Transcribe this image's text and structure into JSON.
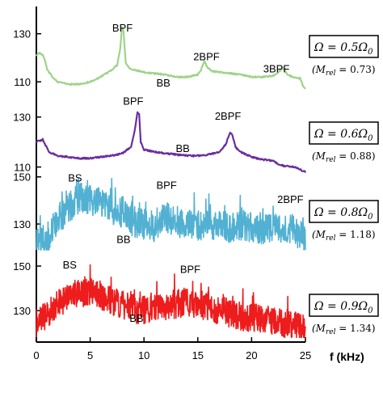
{
  "chart_data": {
    "type": "line",
    "xlabel": "f (kHz)",
    "xlim": [
      0,
      25
    ],
    "x_ticks": [
      "0",
      "5",
      "10",
      "15",
      "20",
      "25"
    ],
    "panels": [
      {
        "color": "#9fd38a",
        "y_ticks": [
          "130",
          "110"
        ],
        "ylim": [
          103,
          140
        ],
        "box_label": "Ω = 0.5Ω0",
        "box_main": "Ω = 0.5Ω",
        "box_sub": "0",
        "mrel_label": "(M",
        "mrel_sub": "rel",
        "mrel_value": " = 0.73)",
        "annotations": [
          {
            "text": "BPF",
            "x": 8,
            "y": 131
          },
          {
            "text": "2BPF",
            "x": 15.8,
            "y": 119
          },
          {
            "text": "BB",
            "x": 11.8,
            "y": 108
          },
          {
            "text": "3BPF",
            "x": 22.3,
            "y": 114
          }
        ],
        "x": [
          0,
          0.3,
          0.6,
          0.8,
          1.0,
          1.5,
          2.0,
          3.0,
          4.0,
          5.0,
          6.0,
          7.0,
          7.5,
          7.8,
          7.95,
          8.1,
          8.3,
          8.6,
          9.0,
          10.0,
          11.0,
          12.0,
          13.0,
          14.0,
          15.0,
          15.3,
          15.6,
          15.9,
          16.3,
          17.0,
          18.0,
          19.0,
          20.0,
          21.0,
          22.0,
          22.5,
          22.9,
          23.3,
          23.8,
          24.5,
          24.8,
          25.0
        ],
        "y": [
          121,
          122,
          121,
          119,
          115,
          112,
          110,
          109,
          109,
          110,
          112,
          115,
          117,
          124,
          133,
          131,
          118,
          116,
          115,
          114,
          113.5,
          113,
          112,
          112,
          113,
          115,
          118.5,
          116,
          114.5,
          114,
          113.5,
          113,
          112,
          112,
          112.5,
          114,
          116,
          113,
          112,
          111.5,
          108,
          107
        ]
      },
      {
        "color": "#6a2ea0",
        "y_ticks": [
          "130",
          "110"
        ],
        "ylim": [
          105,
          138
        ],
        "box_label": "Ω = 0.6Ω0",
        "box_main": "Ω = 0.6Ω",
        "box_sub": "0",
        "mrel_label": "(M",
        "mrel_sub": "rel",
        "mrel_value": " = 0.88)",
        "annotations": [
          {
            "text": "BPF",
            "x": 9,
            "y": 135
          },
          {
            "text": "2BPF",
            "x": 17.8,
            "y": 129
          },
          {
            "text": "BB",
            "x": 13.6,
            "y": 116
          }
        ],
        "x": [
          0,
          0.3,
          0.6,
          0.8,
          1.2,
          2.0,
          3.0,
          4.0,
          5.0,
          6.0,
          7.0,
          8.0,
          8.8,
          9.2,
          9.4,
          9.55,
          9.7,
          10.0,
          11.0,
          12.0,
          13.0,
          14.0,
          15.0,
          16.0,
          17.0,
          17.6,
          18.0,
          18.2,
          18.5,
          19.0,
          20.0,
          21.0,
          22.0,
          22.5,
          23.0,
          24.0,
          25.0
        ],
        "y": [
          120,
          120.5,
          121,
          119,
          116,
          114.5,
          114,
          113.5,
          113.5,
          114,
          114.5,
          115.5,
          118,
          126,
          132,
          131,
          120,
          117,
          116,
          115.5,
          115,
          114.5,
          114.5,
          115,
          116,
          119,
          124,
          123,
          118,
          116,
          114,
          113,
          112.5,
          111,
          110.5,
          110,
          108
        ]
      },
      {
        "color": "#52b1d2",
        "y_ticks": [
          "150",
          "130"
        ],
        "ylim": [
          118,
          153
        ],
        "box_label": "Ω = 0.8Ω0",
        "box_main": "Ω = 0.8Ω",
        "box_sub": "0",
        "mrel_label": "(M",
        "mrel_sub": "rel",
        "mrel_value": " = 1.18)",
        "annotations": [
          {
            "text": "BS",
            "x": 3.6,
            "y": 148
          },
          {
            "text": "BPF",
            "x": 12.1,
            "y": 145
          },
          {
            "text": "BB",
            "x": 8.1,
            "y": 122
          },
          {
            "text": "2BPF",
            "x": 23.6,
            "y": 139
          }
        ],
        "x": [
          0,
          1,
          2,
          3,
          4,
          5,
          6,
          7,
          8,
          9,
          10,
          11,
          12,
          13,
          14,
          15,
          16,
          17,
          18,
          19,
          20,
          21,
          22,
          23,
          24,
          25
        ],
        "y": [
          121,
          124,
          132,
          137,
          141,
          140,
          139,
          136,
          134,
          131,
          130,
          129,
          133,
          130,
          131,
          129,
          130,
          129,
          128.5,
          128.5,
          129,
          128,
          128,
          129,
          127,
          123
        ]
      },
      {
        "color": "#ee1c1c",
        "y_ticks": [
          "150",
          "130"
        ],
        "ylim": [
          117,
          154
        ],
        "box_label": "Ω = 0.9Ω0",
        "box_main": "Ω = 0.9Ω",
        "box_sub": "0",
        "mrel_label": "(M",
        "mrel_sub": "rel",
        "mrel_value": " = 1.34)",
        "annotations": [
          {
            "text": "BS",
            "x": 3.1,
            "y": 149
          },
          {
            "text": "BPF",
            "x": 14.3,
            "y": 147
          },
          {
            "text": "BB",
            "x": 9.3,
            "y": 125
          }
        ],
        "x": [
          0,
          1,
          2,
          3,
          4,
          5,
          6,
          7,
          8,
          9,
          10,
          11,
          12,
          13,
          14,
          15,
          16,
          17,
          18,
          19,
          20,
          21,
          22,
          23,
          24,
          25
        ],
        "y": [
          124,
          128,
          133,
          136,
          138,
          138,
          137,
          134,
          133,
          131,
          130,
          131,
          132,
          133,
          134,
          133,
          132,
          130,
          129,
          127.5,
          127,
          126,
          125.5,
          124.5,
          123,
          122
        ]
      }
    ]
  }
}
